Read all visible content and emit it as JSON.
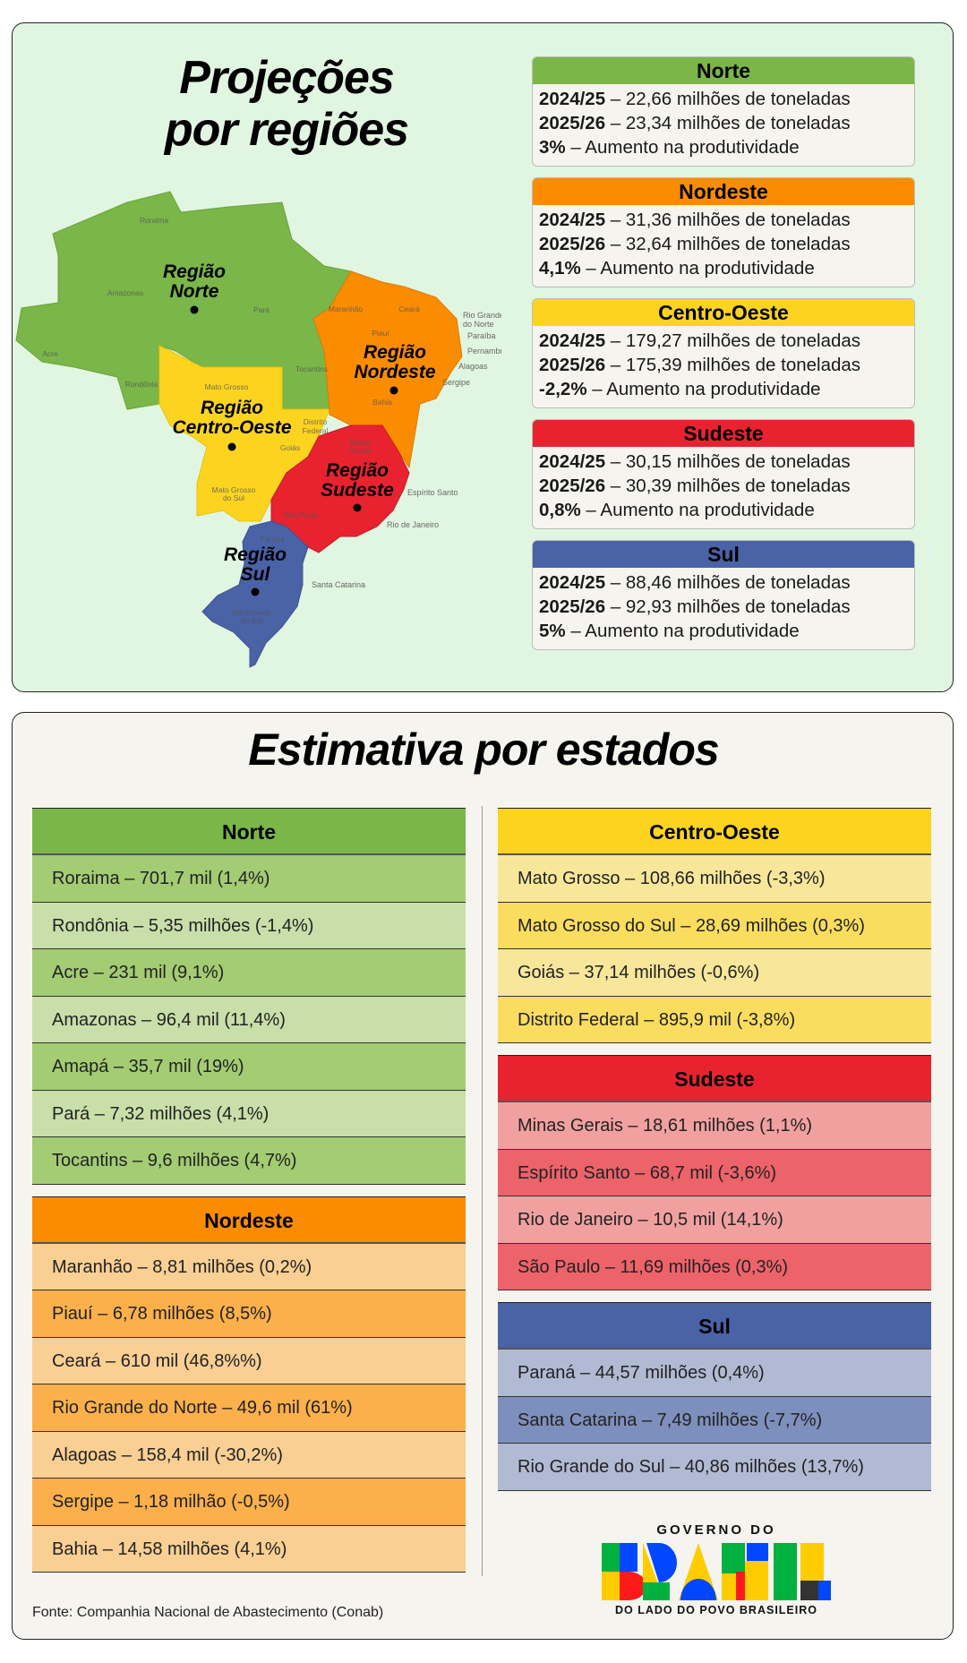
{
  "top": {
    "title_line1": "Projeções",
    "title_line2": "por regiões",
    "regions": [
      {
        "name": "Norte",
        "color": "#7ab648",
        "y1_label": "2024/25",
        "y1_value": " – 22,66 milhões de toneladas",
        "y2_label": "2025/26",
        "y2_value": " – 23,34 milhões de toneladas",
        "pct": "3%",
        "pct_text": " – Aumento na produtividade"
      },
      {
        "name": "Nordeste",
        "color": "#fb8c00",
        "y1_label": "2024/25",
        "y1_value": " – 31,36 milhões de toneladas",
        "y2_label": "2025/26",
        "y2_value": " – 32,64 milhões de toneladas",
        "pct": "4,1%",
        "pct_text": " – Aumento na produtividade"
      },
      {
        "name": "Centro-Oeste",
        "color": "#fcd420",
        "y1_label": "2024/25",
        "y1_value": " – 179,27 milhões de toneladas",
        "y2_label": "2025/26",
        "y2_value": " – 175,39 milhões de toneladas",
        "pct": "-2,2%",
        "pct_text": " – Aumento na produtividade"
      },
      {
        "name": "Sudeste",
        "color": "#e8232f",
        "y1_label": "2024/25",
        "y1_value": " – 30,15 milhões de toneladas",
        "y2_label": "2025/26",
        "y2_value": " – 30,39 milhões de toneladas",
        "pct": "0,8%",
        "pct_text": " – Aumento na produtividade"
      },
      {
        "name": "Sul",
        "color": "#4a62a6",
        "y1_label": "2024/25",
        "y1_value": " – 88,46 milhões de toneladas",
        "y2_label": "2025/26",
        "y2_value": " – 92,93 milhões de toneladas",
        "pct": "5%",
        "pct_text": " – Aumento na produtividade"
      }
    ],
    "map": {
      "region_labels": {
        "norte": [
          "Região",
          "Norte"
        ],
        "nordeste": [
          "Região",
          "Nordeste"
        ],
        "centro_oeste": [
          "Região",
          "Centro-Oeste"
        ],
        "sudeste": [
          "Região",
          "Sudeste"
        ],
        "sul": [
          "Região",
          "Sul"
        ]
      },
      "state_labels": {
        "roraima": "Roraima",
        "amazonas": "Amazonas",
        "para": "Pará",
        "acre": "Acre",
        "rondonia": "Rondônia",
        "tocantins": "Tocantins",
        "maranhao": "Maranhão",
        "ceara": "Ceará",
        "piaui": "Piauí",
        "bahia": "Bahia",
        "mato_grosso": "Mato Grosso",
        "distrito_federal": [
          "Distrito",
          "Federal"
        ],
        "goias": "Goiás",
        "mato_grosso_do_sul": [
          "Mato Grosso",
          "do Sul"
        ],
        "minas_gerais": [
          "Minas",
          "Gerais"
        ],
        "sao_paulo": "São Paulo",
        "parana": "Paraná",
        "rio_grande_do_sul": [
          "Rio Grande",
          "do Sul"
        ],
        "rio_grande_do_norte": [
          "Rio Grande",
          "do Norte"
        ],
        "paraiba": "Paraíba",
        "pernambuco": "Pernambuco",
        "alagoas": "Alagoas",
        "sergipe": "Sergipe",
        "espirito_santo": "Espírito Santo",
        "rio_de_janeiro": "Rio de Janeiro",
        "santa_catarina": "Santa Catarina"
      }
    }
  },
  "bottom": {
    "title": "Estimativa por estados",
    "left": [
      {
        "name": "Norte",
        "header_color": "#7ab648",
        "row_colors": [
          "#a3cc73",
          "#c8dfa9"
        ],
        "rows": [
          "Roraima – 701,7 mil (1,4%)",
          "Rondônia – 5,35 milhões (-1,4%)",
          "Acre – 231 mil (9,1%)",
          "Amazonas – 96,4 mil (11,4%)",
          "Amapá – 35,7 mil (19%)",
          "Pará – 7,32 milhões (4,1%)",
          "Tocantins – 9,6 milhões (4,7%)"
        ]
      },
      {
        "name": "Nordeste",
        "header_color": "#fb8c00",
        "row_colors": [
          "#f9cf93",
          "#fbb04c"
        ],
        "rows": [
          "Maranhão – 8,81 milhões (0,2%)",
          "Piauí – 6,78 milhões (8,5%)",
          "Ceará – 610 mil (46,8%%)",
          "Rio Grande do Norte – 49,6 mil (61%)",
          "Alagoas – 158,4 mil (-30,2%)",
          "Sergipe – 1,18 milhão (-0,5%)",
          "Bahia – 14,58 milhões (4,1%)"
        ]
      }
    ],
    "right": [
      {
        "name": "Centro-Oeste",
        "header_color": "#fcd420",
        "row_colors": [
          "#f8e79a",
          "#fadd5e"
        ],
        "rows": [
          "Mato Grosso – 108,66 milhões (-3,3%)",
          "Mato Grosso do Sul – 28,69 milhões (0,3%)",
          "Goiás – 37,14 milhões (-0,6%)",
          "Distrito Federal – 895,9 mil (-3,8%)"
        ]
      },
      {
        "name": "Sudeste",
        "header_color": "#e8232f",
        "row_colors": [
          "#f1a0a0",
          "#ed636a"
        ],
        "rows": [
          "Minas Gerais – 18,61 milhões (1,1%)",
          "Espírito Santo – 68,7 mil (-3,6%)",
          "Rio de Janeiro – 10,5 mil (14,1%)",
          "São Paulo – 11,69 milhões (0,3%)"
        ]
      },
      {
        "name": "Sul",
        "header_color": "#4a62a6",
        "row_colors": [
          "#b1bad3",
          "#7d8fbc"
        ],
        "rows": [
          "Paraná – 44,57 milhões (0,4%)",
          "Santa Catarina – 7,49 milhões (-7,7%)",
          "Rio Grande do Sul – 40,86 milhões (13,7%)"
        ]
      }
    ],
    "source": "Fonte: Companhia Nacional de Abastecimento (Conab)",
    "logo": {
      "top": "GOVERNO DO",
      "word": "BRASIL",
      "tagline": "DO LADO DO POVO BRASILEIRO"
    }
  }
}
